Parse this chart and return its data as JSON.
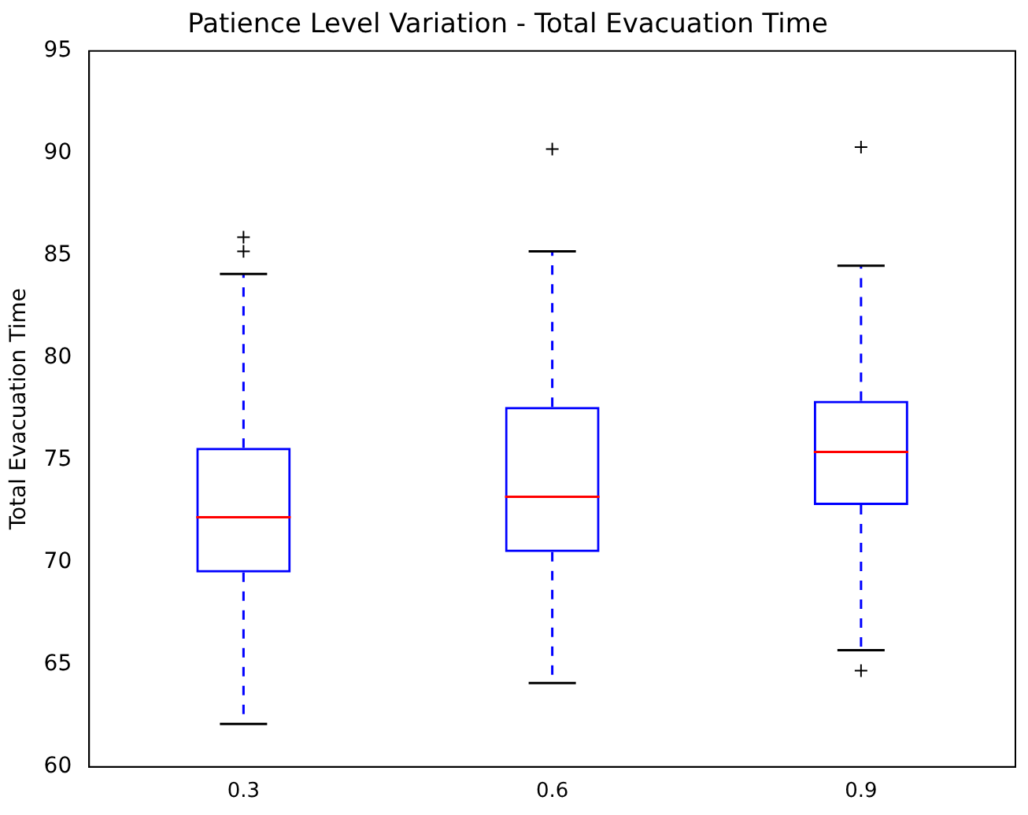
{
  "chart_data": {
    "type": "box",
    "title": "Patience Level Variation - Total Evacuation Time",
    "ylabel": "Total Evacuation Time",
    "categories": [
      "0.3",
      "0.6",
      "0.9"
    ],
    "boxes": [
      {
        "low": 62.1,
        "q1": 69.5,
        "median": 72.2,
        "q3": 75.6,
        "high": 84.1,
        "outliers": [
          85.2,
          85.9
        ]
      },
      {
        "low": 64.1,
        "q1": 70.5,
        "median": 73.2,
        "q3": 77.6,
        "high": 85.2,
        "outliers": [
          90.2
        ]
      },
      {
        "low": 65.7,
        "q1": 72.8,
        "median": 75.4,
        "q3": 77.9,
        "high": 84.5,
        "outliers": [
          64.7,
          90.3
        ]
      }
    ],
    "ylim": [
      60,
      95
    ],
    "yticks": [
      60,
      65,
      70,
      75,
      80,
      85,
      90,
      95
    ],
    "grid": false,
    "legend": false,
    "marker": "cross"
  }
}
